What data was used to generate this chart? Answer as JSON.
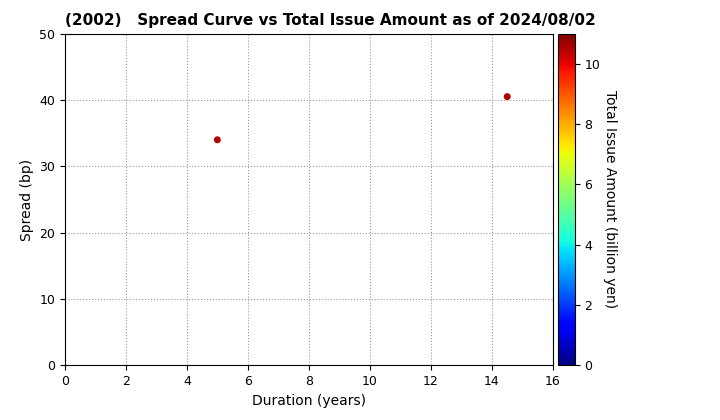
{
  "title": "(2002)   Spread Curve vs Total Issue Amount as of 2024/08/02",
  "xlabel": "Duration (years)",
  "ylabel": "Spread (bp)",
  "colorbar_label": "Total Issue Amount (billion yen)",
  "points": [
    {
      "duration": 5.0,
      "spread": 34.0,
      "amount": 10.5
    },
    {
      "duration": 14.5,
      "spread": 40.5,
      "amount": 10.5
    }
  ],
  "xlim": [
    0,
    16
  ],
  "ylim": [
    0,
    50
  ],
  "xticks": [
    0,
    2,
    4,
    6,
    8,
    10,
    12,
    14,
    16
  ],
  "yticks": [
    0,
    10,
    20,
    30,
    40,
    50
  ],
  "colorbar_ticks": [
    0,
    2,
    4,
    6,
    8,
    10
  ],
  "colormap": "jet",
  "vmin": 0,
  "vmax": 11,
  "marker_size": 25,
  "background_color": "#ffffff",
  "title_fontsize": 11,
  "label_fontsize": 10
}
